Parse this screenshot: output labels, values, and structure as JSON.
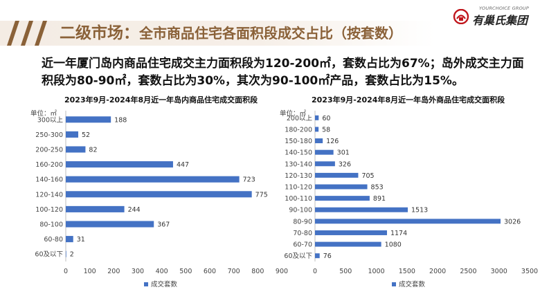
{
  "header": {
    "title_part1": "二级市场：",
    "title_part2": "全市商品住宅各面积段成交占比（按套数）",
    "logo_en": "YOURCHOICE GROUP",
    "logo_cn": "有巢氏集团"
  },
  "summary": "近一年厦门岛内商品住宅成交主力面积段为120-200㎡，套数占比为67%；岛外成交主力面积段为80-90㎡，套数占比为30%，其次为90-100㎡产品，套数占比为15%。",
  "colors": {
    "bar": "#4472c4",
    "title": "#8a6138"
  },
  "chart_data": [
    {
      "type": "bar",
      "orientation": "horizontal",
      "title": "2023年9月-2024年8月近一年岛内商品住宅成交面积段",
      "unit_label": "单位：㎡",
      "categories": [
        "300以上",
        "250-300",
        "200-250",
        "160-200",
        "140-160",
        "120-140",
        "100-120",
        "80-100",
        "60-80",
        "60及以下"
      ],
      "series": [
        {
          "name": "成交套数",
          "values": [
            188,
            52,
            82,
            447,
            723,
            775,
            244,
            367,
            31,
            2
          ]
        }
      ],
      "xlim": [
        0,
        900
      ],
      "xticks": [
        0,
        100,
        200,
        300,
        400,
        500,
        600,
        700,
        800,
        900
      ],
      "legend": "bottom",
      "grid": false
    },
    {
      "type": "bar",
      "orientation": "horizontal",
      "title": "2023年9月-2024年8月近一年岛外商品住宅成交面积段",
      "unit_label": "单位：㎡",
      "categories": [
        "200以上",
        "180-200",
        "150-180",
        "140-150",
        "130-140",
        "120-130",
        "110-120",
        "100-110",
        "90-100",
        "80-90",
        "70-80",
        "60-70",
        "60及以下"
      ],
      "series": [
        {
          "name": "成交套数",
          "values": [
            60,
            58,
            126,
            301,
            326,
            705,
            853,
            891,
            1513,
            3026,
            1174,
            1080,
            76
          ]
        }
      ],
      "xlim": [
        0,
        3500
      ],
      "xticks": [
        0,
        500,
        1000,
        1500,
        2000,
        2500,
        3000,
        3500
      ],
      "legend": "bottom",
      "grid": false
    }
  ]
}
